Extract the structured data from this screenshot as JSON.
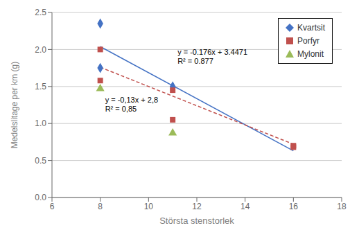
{
  "chart_data": {
    "type": "scatter",
    "xlabel": "Största stenstorlek",
    "ylabel": "Medelslitage per km (g)",
    "xlim": [
      6,
      18
    ],
    "ylim": [
      0,
      2.5
    ],
    "xticks": [
      6,
      8,
      10,
      12,
      14,
      16,
      18
    ],
    "yticks": [
      {
        "value": 0,
        "label": "0.0"
      },
      0.5,
      {
        "value": 1.0,
        "label": "1.0"
      },
      1.5,
      {
        "value": 2.0,
        "label": "2.0"
      },
      2.5
    ],
    "grid": "y",
    "legend": "upper right",
    "series": [
      {
        "type": "line",
        "color": "#4472C4",
        "line_style": "solid",
        "x": [
          8,
          16
        ],
        "values": [
          2.0391,
          0.6311
        ]
      },
      {
        "type": "line",
        "color": "#C0504D",
        "line_style": "dashed",
        "x": [
          8,
          16
        ],
        "values": [
          1.76,
          0.72
        ]
      },
      {
        "type": "scatter",
        "name": "Kvartsit",
        "color": "#4472C4",
        "marker": "diamond",
        "x": [
          8,
          8,
          11
        ],
        "values": [
          2.35,
          1.75,
          1.5
        ]
      },
      {
        "type": "scatter",
        "name": "Porfyr",
        "color": "#C0504D",
        "marker": "square",
        "x": [
          8,
          8,
          11,
          11,
          16,
          16
        ],
        "values": [
          2.0,
          1.58,
          1.05,
          1.45,
          0.7,
          0.68
        ]
      },
      {
        "type": "scatter",
        "name": "Mylonit",
        "color": "#9BBB59",
        "marker": "triangle",
        "x": [
          8,
          11
        ],
        "values": [
          1.47,
          0.87
        ]
      }
    ],
    "annotations": [
      {
        "text": "y = -0.176x + 3.4471\nR² = 0.877",
        "x": 11.2,
        "y": 2.02
      },
      {
        "text": "y = -0,13x + 2,8\nR² = 0,85",
        "x": 8.2,
        "y": 1.38
      }
    ]
  }
}
